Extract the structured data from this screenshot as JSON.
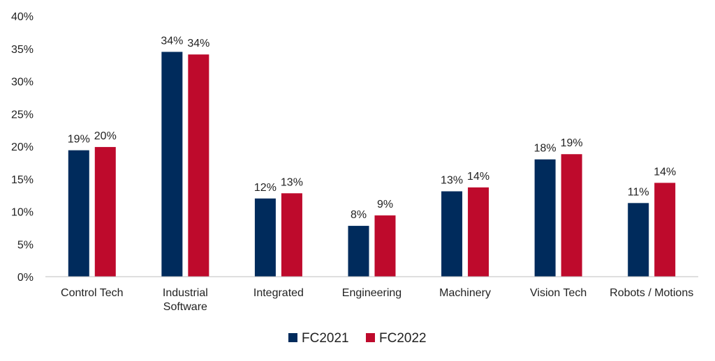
{
  "chart_data": {
    "type": "bar",
    "title": "",
    "xlabel": "",
    "ylabel": "",
    "ylim": [
      0,
      40
    ],
    "yticks": [
      0,
      5,
      10,
      15,
      20,
      25,
      30,
      35,
      40
    ],
    "ytick_suffix": "%",
    "grid": false,
    "legend_position": "bottom-center",
    "categories": [
      [
        "Control Tech"
      ],
      [
        "Industrial",
        "Software"
      ],
      [
        "Integrated"
      ],
      [
        "Engineering"
      ],
      [
        "Machinery"
      ],
      [
        "Vision Tech"
      ],
      [
        "Robots / Motions"
      ]
    ],
    "series": [
      {
        "name": "FC2021",
        "color": "#002b5c",
        "values": [
          19.4,
          34.5,
          12.0,
          7.8,
          13.1,
          18.0,
          11.3
        ],
        "labels": [
          "19%",
          "34%",
          "12%",
          "8%",
          "13%",
          "18%",
          "11%"
        ]
      },
      {
        "name": "FC2022",
        "color": "#be0a2c",
        "values": [
          19.9,
          34.1,
          12.8,
          9.4,
          13.7,
          18.8,
          14.4
        ],
        "labels": [
          "20%",
          "34%",
          "13%",
          "9%",
          "14%",
          "19%",
          "14%"
        ]
      }
    ]
  }
}
